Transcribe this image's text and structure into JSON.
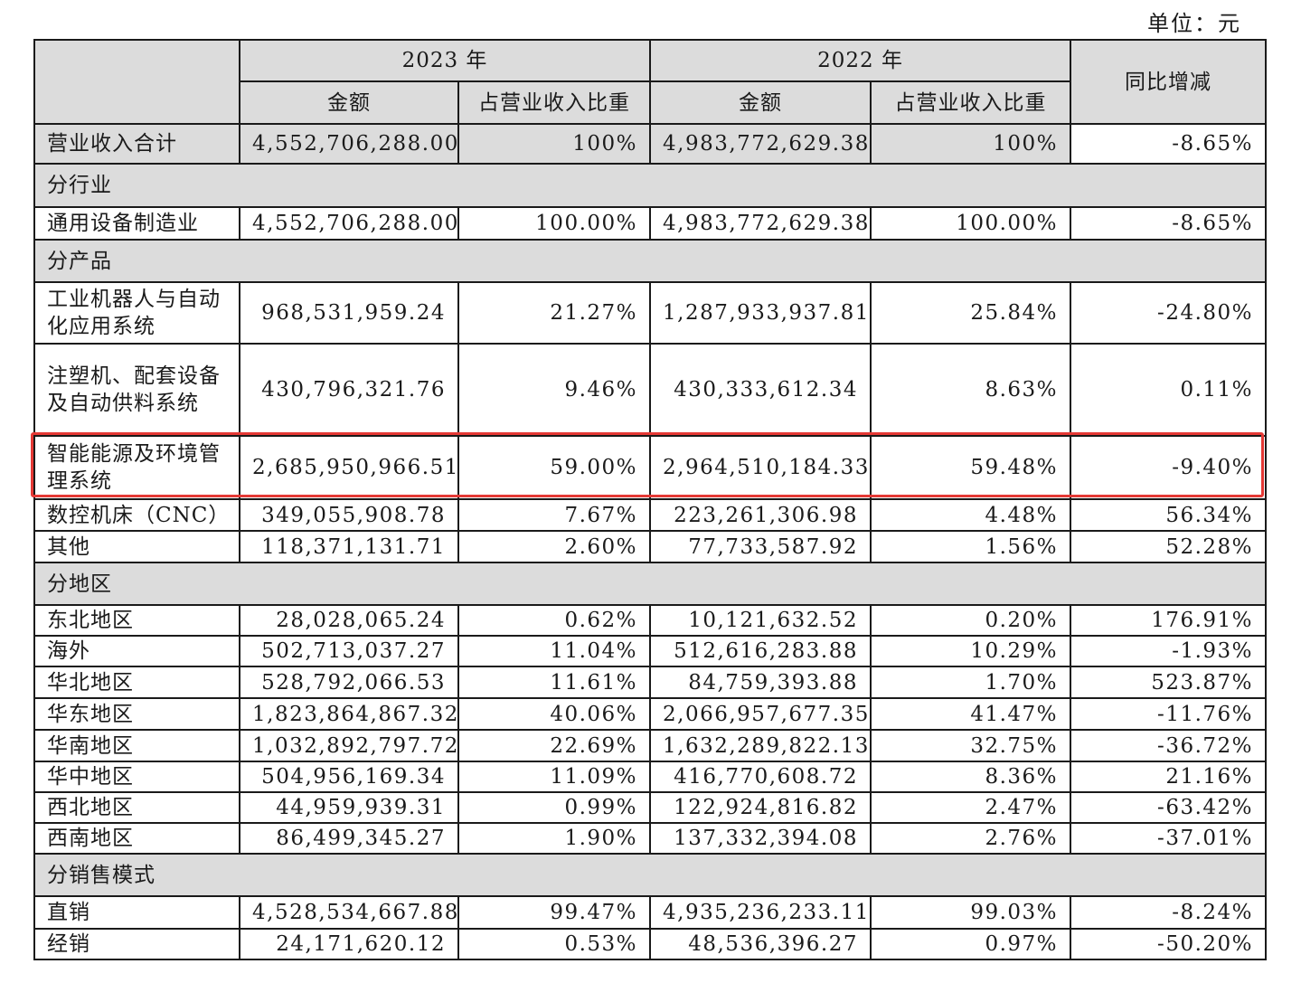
{
  "unit_label": "单位：元",
  "header": {
    "year_2023": "2023 年",
    "year_2022": "2022 年",
    "amount": "金额",
    "share": "占营业收入比重",
    "yoy": "同比增减"
  },
  "rows": {
    "total": {
      "label": "营业收入合计",
      "v2023": "4,552,706,288.00",
      "s2023": "100%",
      "v2022": "4,983,772,629.38",
      "s2022": "100%",
      "yoy": "-8.65%"
    },
    "sec_industry": "分行业",
    "general_equipment": {
      "label": "通用设备制造业",
      "v2023": "4,552,706,288.00",
      "s2023": "100.00%",
      "v2022": "4,983,772,629.38",
      "s2022": "100.00%",
      "yoy": "-8.65%"
    },
    "sec_product": "分产品",
    "robots": {
      "label": "工业机器人与自动化应用系统",
      "v2023": "968,531,959.24",
      "s2023": "21.27%",
      "v2022": "1,287,933,937.81",
      "s2022": "25.84%",
      "yoy": "-24.80%"
    },
    "injection": {
      "label": "注塑机、配套设备及自动供料系统",
      "v2023": "430,796,321.76",
      "s2023": "9.46%",
      "v2022": "430,333,612.34",
      "s2022": "8.63%",
      "yoy": "0.11%"
    },
    "energy": {
      "label": "智能能源及环境管理系统",
      "v2023": "2,685,950,966.51",
      "s2023": "59.00%",
      "v2022": "2,964,510,184.33",
      "s2022": "59.48%",
      "yoy": "-9.40%"
    },
    "cnc": {
      "label": "数控机床（CNC）",
      "v2023": "349,055,908.78",
      "s2023": "7.67%",
      "v2022": "223,261,306.98",
      "s2022": "4.48%",
      "yoy": "56.34%"
    },
    "other": {
      "label": "其他",
      "v2023": "118,371,131.71",
      "s2023": "2.60%",
      "v2022": "77,733,587.92",
      "s2022": "1.56%",
      "yoy": "52.28%"
    },
    "sec_region": "分地区",
    "northeast": {
      "label": "东北地区",
      "v2023": "28,028,065.24",
      "s2023": "0.62%",
      "v2022": "10,121,632.52",
      "s2022": "0.20%",
      "yoy": "176.91%"
    },
    "overseas": {
      "label": "海外",
      "v2023": "502,713,037.27",
      "s2023": "11.04%",
      "v2022": "512,616,283.88",
      "s2022": "10.29%",
      "yoy": "-1.93%"
    },
    "north": {
      "label": "华北地区",
      "v2023": "528,792,066.53",
      "s2023": "11.61%",
      "v2022": "84,759,393.88",
      "s2022": "1.70%",
      "yoy": "523.87%"
    },
    "east": {
      "label": "华东地区",
      "v2023": "1,823,864,867.32",
      "s2023": "40.06%",
      "v2022": "2,066,957,677.35",
      "s2022": "41.47%",
      "yoy": "-11.76%"
    },
    "south": {
      "label": "华南地区",
      "v2023": "1,032,892,797.72",
      "s2023": "22.69%",
      "v2022": "1,632,289,822.13",
      "s2022": "32.75%",
      "yoy": "-36.72%"
    },
    "central": {
      "label": "华中地区",
      "v2023": "504,956,169.34",
      "s2023": "11.09%",
      "v2022": "416,770,608.72",
      "s2022": "8.36%",
      "yoy": "21.16%"
    },
    "northwest": {
      "label": "西北地区",
      "v2023": "44,959,939.31",
      "s2023": "0.99%",
      "v2022": "122,924,816.82",
      "s2022": "2.47%",
      "yoy": "-63.42%"
    },
    "southwest": {
      "label": "西南地区",
      "v2023": "86,499,345.27",
      "s2023": "1.90%",
      "v2022": "137,332,394.08",
      "s2022": "2.76%",
      "yoy": "-37.01%"
    },
    "sec_sales": "分销售模式",
    "direct": {
      "label": "直销",
      "v2023": "4,528,534,667.88",
      "s2023": "99.47%",
      "v2022": "4,935,236,233.11",
      "s2022": "99.03%",
      "yoy": "-8.24%"
    },
    "distribution": {
      "label": "经销",
      "v2023": "24,171,620.12",
      "s2023": "0.53%",
      "v2022": "48,536,396.27",
      "s2022": "0.97%",
      "yoy": "-50.20%"
    }
  },
  "highlight_color": "#e53935"
}
